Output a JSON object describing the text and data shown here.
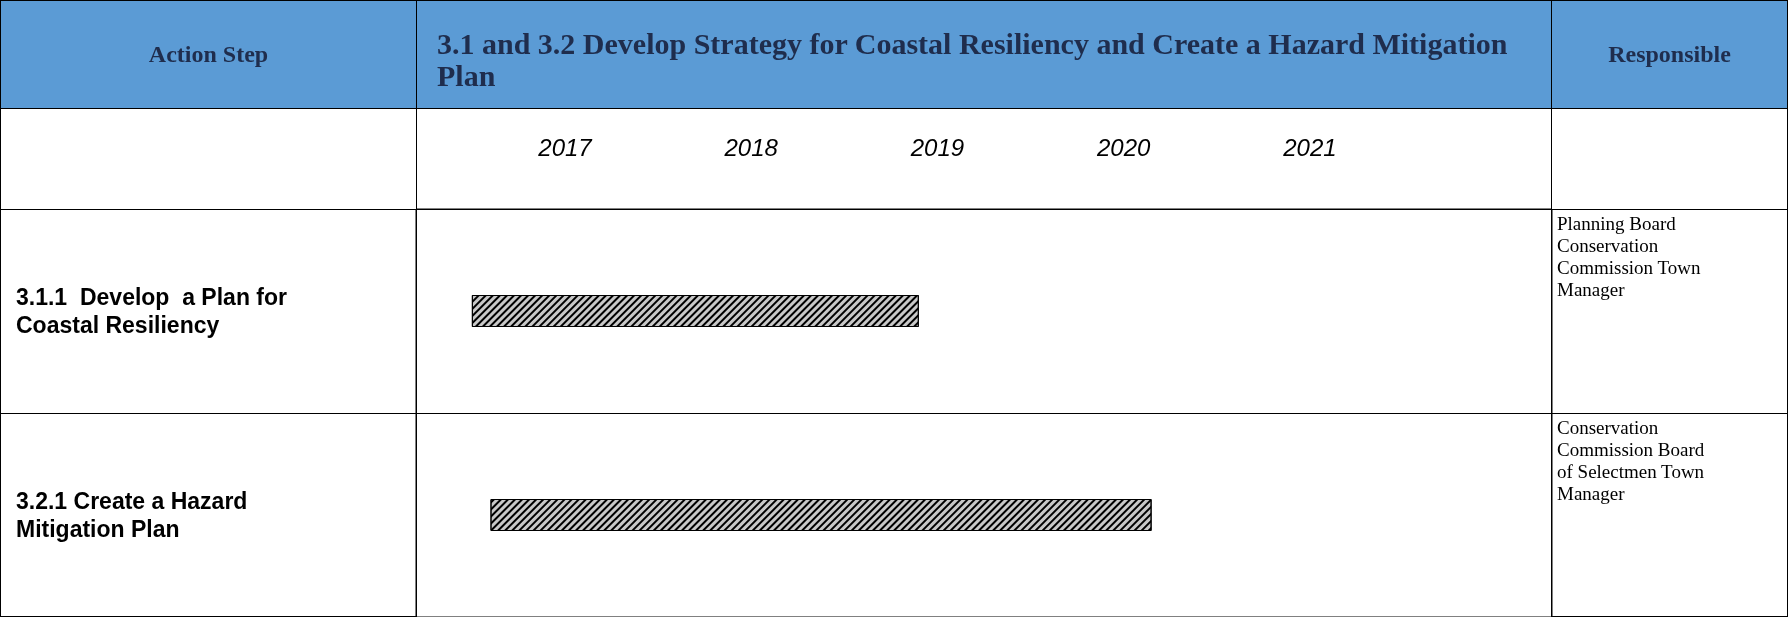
{
  "chart_data": {
    "type": "bar",
    "orientation": "horizontal",
    "title": "3.1 and 3.2 Develop Strategy for Coastal Resiliency and Create a Hazard Mitigation Plan",
    "ylabel": "Action Step",
    "categories": [
      "3.1.1  Develop  a Plan for Coastal Resiliency",
      "3.2.1 Create a Hazard Mitigation Plan"
    ],
    "base": [
      2016.5,
      2016.6
    ],
    "values": [
      2.4,
      3.55
    ],
    "color": "#c8c8c8",
    "xlim": [
      2016.2,
      2022.3
    ],
    "xticks": [
      2017,
      2018,
      2019,
      2020,
      2021
    ],
    "annotations": [
      "Responsible",
      "Planning Board Conservation Commission Town Manager",
      "Conservation Commission Board of Selectmen Town Manager"
    ]
  }
}
